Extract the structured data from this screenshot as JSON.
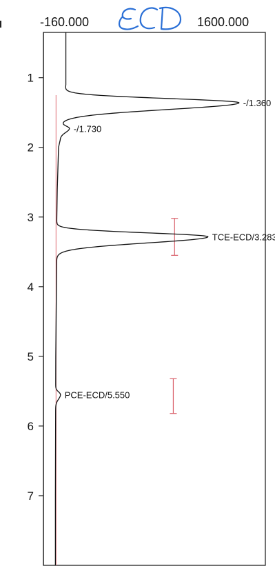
{
  "header": {
    "x_min_label": "-160.000",
    "x_max_label": "1600.000",
    "handwritten_note": "ECD"
  },
  "colors": {
    "trace": "#111111",
    "baseline": "#e0707a",
    "window_bar": "#d9606a",
    "handwriting": "#2a6fd6",
    "frame": "#222222"
  },
  "chart_data": {
    "type": "line",
    "orientation": "vertical-time-axis",
    "title": "",
    "xlabel": "",
    "ylabel": "",
    "xlim": [
      -160,
      1600
    ],
    "ylim": [
      0.35,
      8.0
    ],
    "y_ticks": [
      1,
      2,
      3,
      4,
      5,
      6,
      7
    ],
    "grid": false,
    "series": [
      {
        "peaks": [
          {
            "time": 1.36,
            "height": 1400,
            "width": 0.06,
            "label": "-/1.360"
          },
          {
            "time": 1.73,
            "height": 70,
            "width": 0.035,
            "label": "-/1.730"
          },
          {
            "time": 3.283,
            "height": 1200,
            "width": 0.055,
            "label": "TCE-ECD/3.283"
          },
          {
            "time": 5.55,
            "height": 38,
            "width": 0.04,
            "label": "PCE-ECD/5.550"
          }
        ],
        "baseline_segments": [
          {
            "t": 0.35,
            "x": 18
          },
          {
            "t": 1.1,
            "x": 18
          },
          {
            "t": 1.2,
            "x": 10
          },
          {
            "t": 1.25,
            "x": 0
          },
          {
            "t": 1.5,
            "x": -20
          },
          {
            "t": 1.9,
            "x": -28
          },
          {
            "t": 2.0,
            "x": -40
          },
          {
            "t": 2.6,
            "x": -50
          },
          {
            "t": 3.15,
            "x": -55
          },
          {
            "t": 3.6,
            "x": -55
          },
          {
            "t": 5.0,
            "x": -62
          },
          {
            "t": 7.0,
            "x": -65
          },
          {
            "t": 8.0,
            "x": -65
          }
        ]
      }
    ],
    "retention_windows": [
      {
        "name": "TCE-ECD",
        "from": 3.02,
        "to": 3.55,
        "x": 880
      },
      {
        "name": "PCE-ECD",
        "from": 5.32,
        "to": 5.82,
        "x": 870
      }
    ]
  }
}
